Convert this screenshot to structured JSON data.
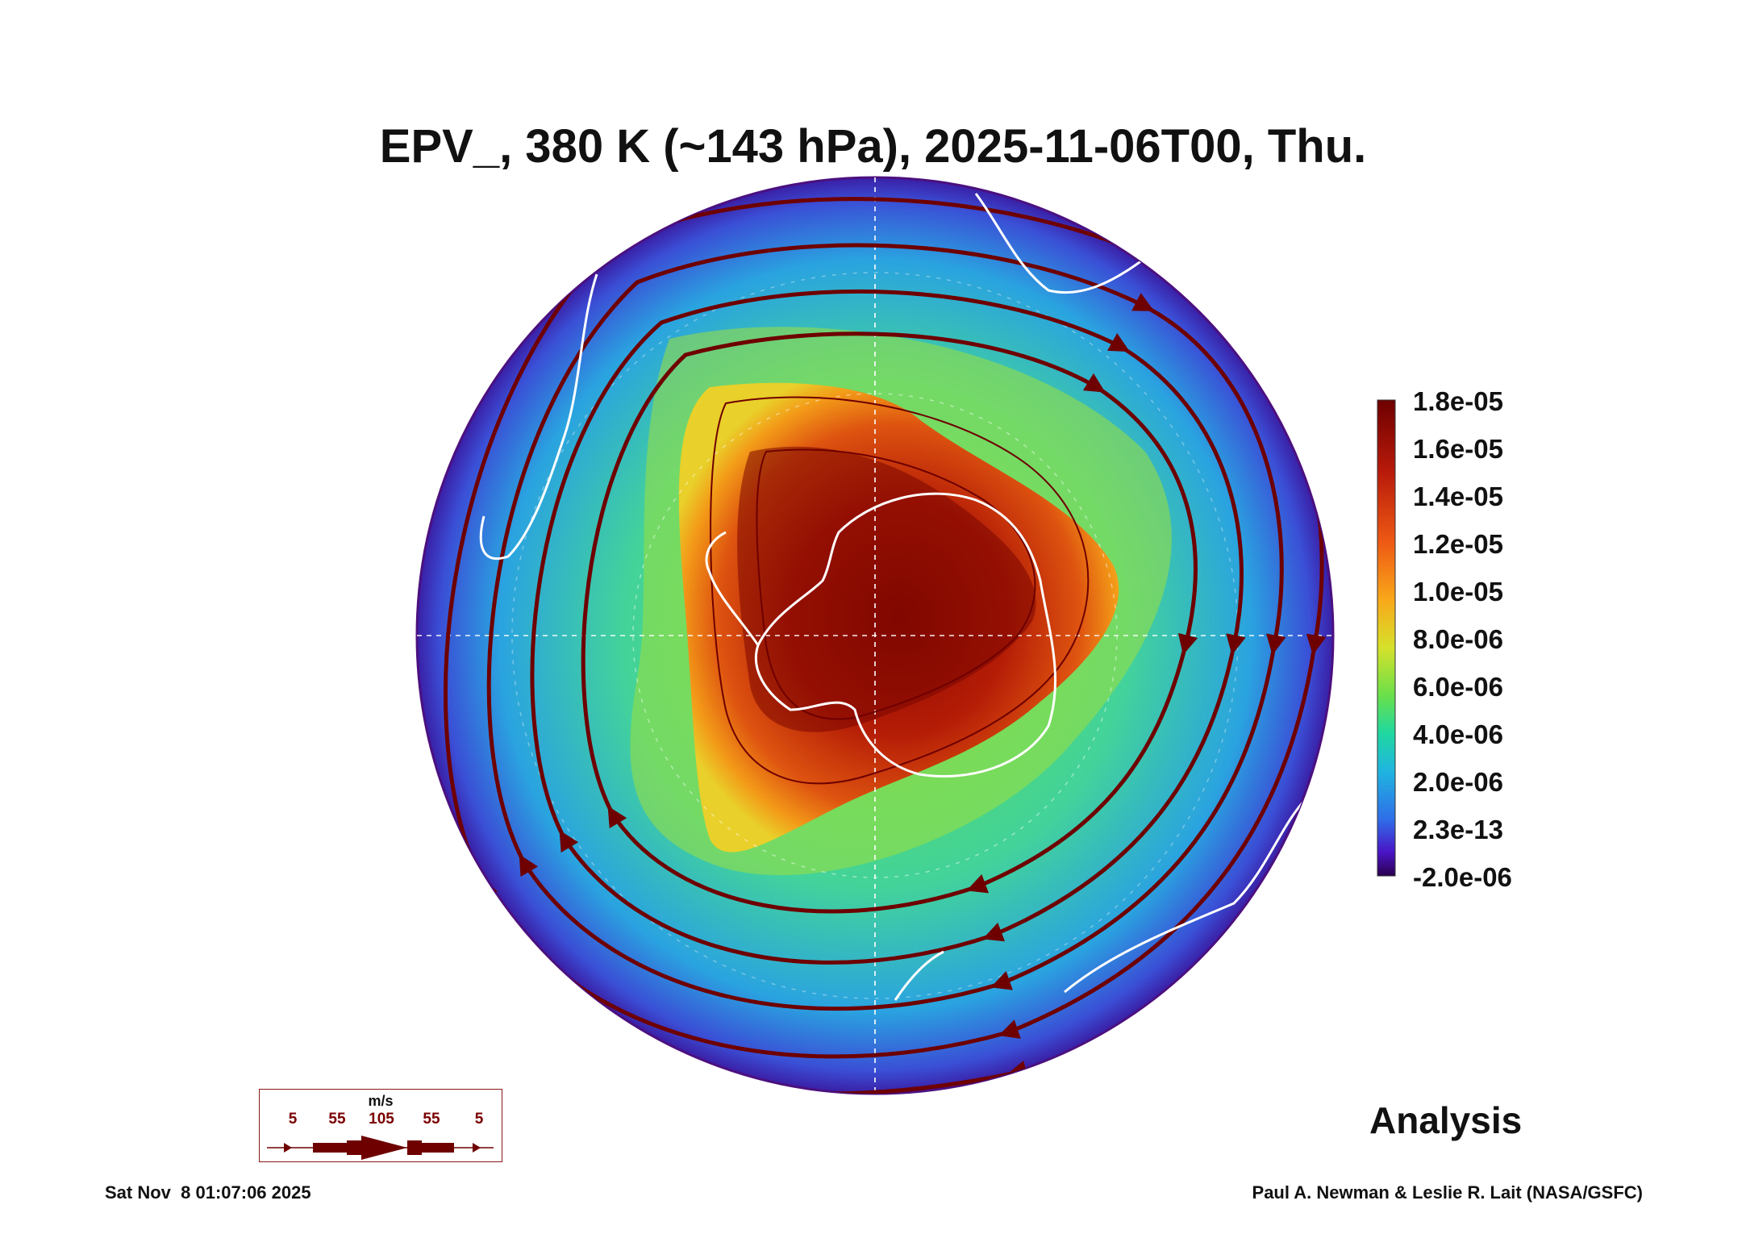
{
  "title": "EPV_, 380 K (~143 hPa), 2025-11-06T00, Thu.",
  "colorbar": {
    "labels": [
      "1.8e-05",
      "1.6e-05",
      "1.4e-05",
      "1.2e-05",
      "1.0e-05",
      "8.0e-06",
      "6.0e-06",
      "4.0e-06",
      "2.0e-06",
      "2.3e-13",
      "-2.0e-06"
    ],
    "colors": [
      "#2b004f",
      "#4a15c6",
      "#2f6fe8",
      "#1fb5e0",
      "#1fd8a0",
      "#6be04a",
      "#d6e12a",
      "#f7a81a",
      "#ef5a14",
      "#c41f0f",
      "#6e0000"
    ]
  },
  "wind_legend": {
    "unit": "m/s",
    "speeds": [
      "5",
      "55",
      "105",
      "55",
      "5"
    ]
  },
  "label": "Analysis",
  "timestamp": "Sat Nov  8 01:07:06 2025",
  "credit": "Paul A. Newman & Leslie R. Lait (NASA/GSFC)"
}
